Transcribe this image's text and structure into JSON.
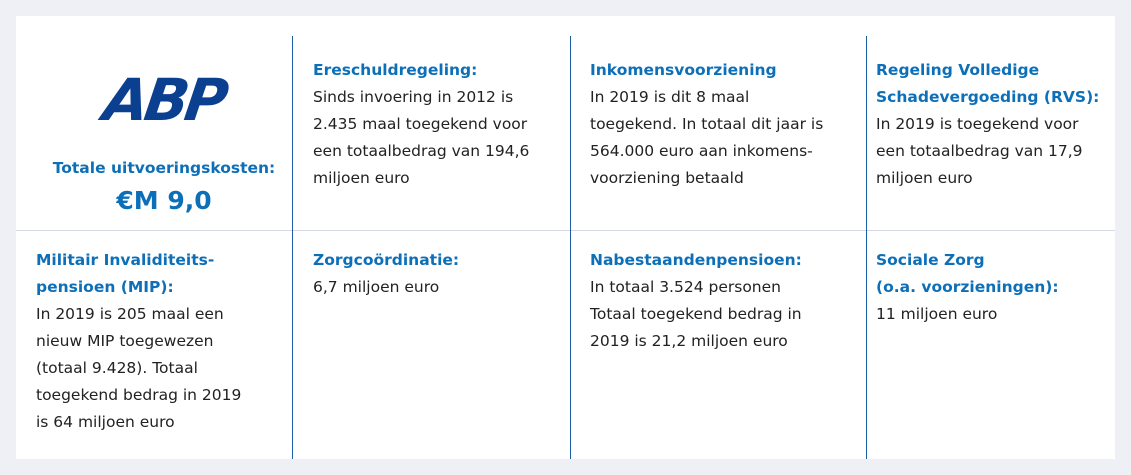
{
  "logo": "ABP",
  "summary": {
    "label": "Totale uitvoeringskosten:",
    "value": "€M 9,0"
  },
  "cells": [
    {
      "heading": [
        "Ereschuldregeling:"
      ],
      "body": [
        "Sinds invoering in 2012 is",
        "2.435 maal toegekend voor",
        "een totaalbedrag van 194,6",
        "miljoen euro"
      ]
    },
    {
      "heading": [
        "Inkomensvoorziening"
      ],
      "body": [
        "In 2019 is dit 8 maal",
        "toegekend. In totaal dit jaar is",
        "564.000 euro aan inkomens-",
        "voorziening betaald"
      ]
    },
    {
      "heading": [
        "Regeling Volledige",
        "Schadevergoeding (RVS):"
      ],
      "body": [
        "In 2019 is toegekend voor",
        "een totaalbedrag van 17,9",
        "miljoen euro"
      ]
    },
    {
      "heading": [
        "Militair Invaliditeits-",
        "pensioen (MIP):"
      ],
      "body": [
        "In 2019 is 205 maal een",
        "nieuw MIP toegewezen",
        "(totaal 9.428). Totaal",
        "toegekend bedrag in 2019",
        "is 64 miljoen euro"
      ]
    },
    {
      "heading": [
        "Zorgcoördinatie:"
      ],
      "body": [
        "6,7 miljoen euro"
      ]
    },
    {
      "heading": [
        "Nabestaandenpensioen:"
      ],
      "body": [
        "In totaal 3.524 personen",
        "Totaal toegekend bedrag in",
        "2019 is 21,2 miljoen euro"
      ]
    },
    {
      "heading": [
        "Sociale Zorg",
        "(o.a. voorzieningen):"
      ],
      "body": [
        "11 miljoen euro"
      ]
    }
  ]
}
